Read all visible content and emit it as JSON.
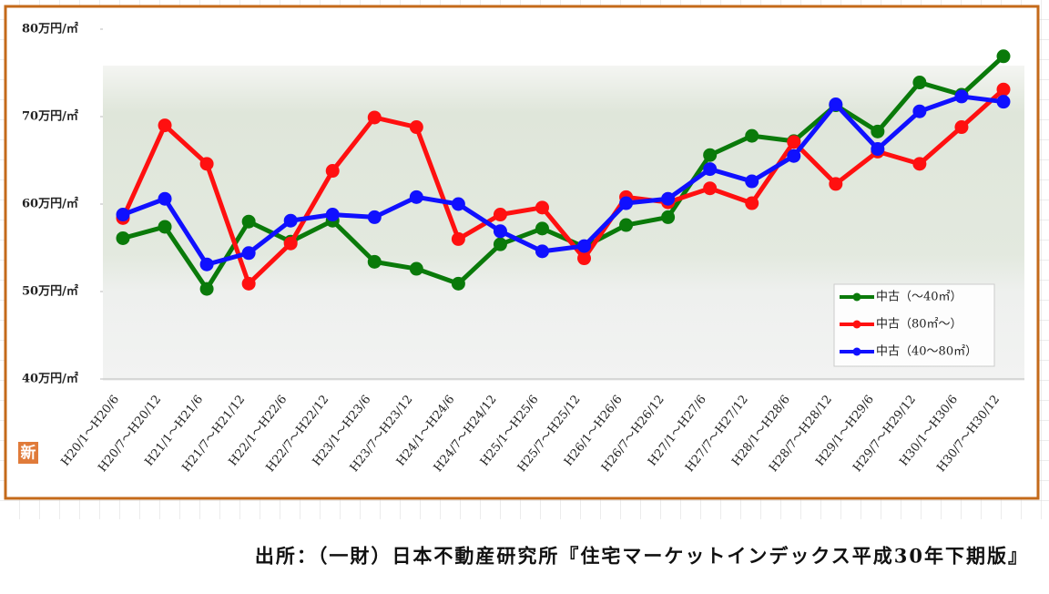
{
  "chart_data": {
    "type": "line",
    "categories": [
      "H20/1～H20/6",
      "H20/7～H20/12",
      "H21/1～H21/6",
      "H21/7～H21/12",
      "H22/1～H22/6",
      "H22/7～H22/12",
      "H23/1～H23/6",
      "H23/7～H23/12",
      "H24/1～H24/6",
      "H24/7～H24/12",
      "H25/1～H25/6",
      "H25/7～H25/12",
      "H26/1～H26/6",
      "H26/7～H26/12",
      "H27/1～H27/6",
      "H27/7～H27/12",
      "H28/1～H28/6",
      "H28/7～H28/12",
      "H29/1～H29/6",
      "H29/7～H29/12",
      "H30/1～H30/6",
      "H30/7～H30/12"
    ],
    "series": [
      {
        "name": "中古（～40㎡）",
        "color": "#0a7a0a",
        "values": [
          56.1,
          57.4,
          50.3,
          58.0,
          55.7,
          58.1,
          53.4,
          52.6,
          50.9,
          55.4,
          57.2,
          55.1,
          57.6,
          58.5,
          65.6,
          67.8,
          67.2,
          71.3,
          68.3,
          73.9,
          72.5,
          76.9
        ]
      },
      {
        "name": "中古（80㎡～）",
        "color": "#ff1010",
        "values": [
          58.4,
          69.0,
          64.6,
          50.9,
          55.5,
          63.8,
          69.9,
          68.8,
          56.0,
          58.8,
          59.6,
          53.8,
          60.8,
          60.2,
          61.8,
          60.1,
          67.1,
          62.3,
          66.0,
          64.6,
          68.8,
          73.1
        ]
      },
      {
        "name": "中古（40～80㎡）",
        "color": "#1010ff",
        "values": [
          58.8,
          60.6,
          53.1,
          54.4,
          58.1,
          58.8,
          58.5,
          60.8,
          60.0,
          56.9,
          54.6,
          55.2,
          60.1,
          60.6,
          64.0,
          62.6,
          65.5,
          71.4,
          66.3,
          70.6,
          72.3,
          71.7
        ]
      }
    ],
    "ylim": [
      40,
      80
    ],
    "yticks": [
      {
        "value": 40,
        "label": "40万円/㎡"
      },
      {
        "value": 50,
        "label": "50万円/㎡"
      },
      {
        "value": 60,
        "label": "60万円/㎡"
      },
      {
        "value": 70,
        "label": "70万円/㎡"
      },
      {
        "value": 80,
        "label": "80万円/㎡"
      }
    ],
    "legend": "lower right",
    "badge": "新",
    "source": "出所：（一財）日本不動産研究所『住宅マーケットインデックス平成30年下期版』"
  }
}
